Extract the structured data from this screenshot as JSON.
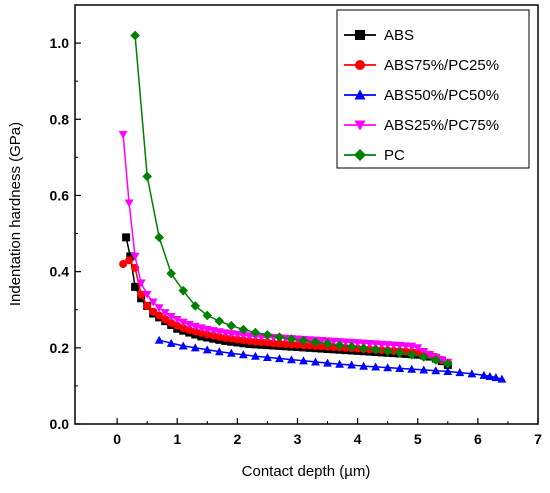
{
  "chart_data": {
    "type": "line",
    "title": "",
    "xlabel": "Contact depth (µm)",
    "ylabel": "Indentation hardness (GPa)",
    "xlim": [
      -0.7,
      7
    ],
    "ylim": [
      0,
      1.1
    ],
    "xticks": [
      "0",
      "1",
      "2",
      "3",
      "4",
      "5",
      "6",
      "7"
    ],
    "yticks": [
      "0.0",
      "0.2",
      "0.4",
      "0.6",
      "0.8",
      "1.0"
    ],
    "grid": false,
    "legend_position": "top-right",
    "series": [
      {
        "name": "ABS",
        "color": "#000000",
        "marker": "square",
        "x": [
          0.15,
          0.22,
          0.3,
          0.4,
          0.5,
          0.6,
          0.7,
          0.8,
          0.9,
          1.0,
          1.1,
          1.2,
          1.3,
          1.4,
          1.5,
          1.6,
          1.7,
          1.8,
          1.9,
          2.0,
          2.1,
          2.2,
          2.3,
          2.4,
          2.5,
          2.6,
          2.7,
          2.8,
          2.9,
          3.0,
          3.1,
          3.2,
          3.3,
          3.4,
          3.5,
          3.6,
          3.7,
          3.8,
          3.9,
          4.0,
          4.1,
          4.2,
          4.3,
          4.4,
          4.5,
          4.6,
          4.7,
          4.8,
          4.9,
          5.0,
          5.1,
          5.2,
          5.3,
          5.4,
          5.5
        ],
        "y": [
          0.49,
          0.44,
          0.36,
          0.33,
          0.31,
          0.29,
          0.28,
          0.27,
          0.26,
          0.25,
          0.245,
          0.24,
          0.235,
          0.23,
          0.227,
          0.224,
          0.221,
          0.218,
          0.216,
          0.214,
          0.212,
          0.21,
          0.209,
          0.208,
          0.207,
          0.206,
          0.205,
          0.204,
          0.203,
          0.202,
          0.201,
          0.2,
          0.199,
          0.198,
          0.197,
          0.196,
          0.195,
          0.194,
          0.193,
          0.192,
          0.191,
          0.19,
          0.189,
          0.188,
          0.187,
          0.186,
          0.185,
          0.184,
          0.183,
          0.182,
          0.18,
          0.177,
          0.172,
          0.165,
          0.155
        ]
      },
      {
        "name": "ABS75%/PC25%",
        "color": "#ff0000",
        "marker": "circle",
        "x": [
          0.1,
          0.2,
          0.3,
          0.4,
          0.5,
          0.6,
          0.7,
          0.8,
          0.9,
          1.0,
          1.1,
          1.2,
          1.3,
          1.4,
          1.5,
          1.6,
          1.7,
          1.8,
          1.9,
          2.0,
          2.1,
          2.2,
          2.3,
          2.4,
          2.5,
          2.6,
          2.7,
          2.8,
          2.9,
          3.0,
          3.1,
          3.2,
          3.3,
          3.4,
          3.5,
          3.6,
          3.7,
          3.8,
          3.9,
          4.0,
          4.1,
          4.2,
          4.3,
          4.4,
          4.5,
          4.6,
          4.7,
          4.8,
          4.9,
          5.0,
          5.1,
          5.2,
          5.3,
          5.4,
          5.5
        ],
        "y": [
          0.42,
          0.43,
          0.41,
          0.34,
          0.31,
          0.295,
          0.285,
          0.275,
          0.265,
          0.258,
          0.252,
          0.247,
          0.243,
          0.239,
          0.235,
          0.232,
          0.229,
          0.226,
          0.224,
          0.222,
          0.22,
          0.218,
          0.216,
          0.215,
          0.214,
          0.212,
          0.211,
          0.21,
          0.209,
          0.208,
          0.207,
          0.206,
          0.205,
          0.204,
          0.203,
          0.202,
          0.201,
          0.2,
          0.199,
          0.198,
          0.197,
          0.196,
          0.195,
          0.194,
          0.193,
          0.192,
          0.191,
          0.19,
          0.189,
          0.188,
          0.186,
          0.182,
          0.176,
          0.168,
          0.16
        ]
      },
      {
        "name": "ABS50%/PC50%",
        "color": "#0000ff",
        "marker": "triangle-up",
        "x": [
          0.7,
          0.9,
          1.1,
          1.3,
          1.5,
          1.7,
          1.9,
          2.1,
          2.3,
          2.5,
          2.7,
          2.9,
          3.1,
          3.3,
          3.5,
          3.7,
          3.9,
          4.1,
          4.3,
          4.5,
          4.7,
          4.9,
          5.1,
          5.3,
          5.5,
          5.7,
          5.9,
          6.1,
          6.2,
          6.3,
          6.4
        ],
        "y": [
          0.22,
          0.212,
          0.205,
          0.2,
          0.195,
          0.19,
          0.186,
          0.182,
          0.178,
          0.175,
          0.172,
          0.169,
          0.166,
          0.163,
          0.16,
          0.157,
          0.155,
          0.152,
          0.15,
          0.148,
          0.146,
          0.144,
          0.142,
          0.14,
          0.138,
          0.135,
          0.132,
          0.128,
          0.125,
          0.122,
          0.118
        ]
      },
      {
        "name": "ABS25%/PC75%",
        "color": "#ff00ff",
        "marker": "triangle-down",
        "x": [
          0.1,
          0.2,
          0.3,
          0.4,
          0.5,
          0.6,
          0.7,
          0.8,
          0.9,
          1.0,
          1.1,
          1.2,
          1.3,
          1.4,
          1.5,
          1.6,
          1.7,
          1.8,
          1.9,
          2.0,
          2.1,
          2.2,
          2.3,
          2.4,
          2.5,
          2.6,
          2.7,
          2.8,
          2.9,
          3.0,
          3.1,
          3.2,
          3.3,
          3.4,
          3.5,
          3.6,
          3.7,
          3.8,
          3.9,
          4.0,
          4.1,
          4.2,
          4.3,
          4.4,
          4.5,
          4.6,
          4.7,
          4.8,
          4.9,
          5.0,
          5.1,
          5.2,
          5.3,
          5.4,
          5.5
        ],
        "y": [
          0.76,
          0.58,
          0.44,
          0.37,
          0.34,
          0.32,
          0.305,
          0.292,
          0.282,
          0.274,
          0.267,
          0.261,
          0.256,
          0.252,
          0.248,
          0.245,
          0.242,
          0.239,
          0.237,
          0.235,
          0.233,
          0.231,
          0.23,
          0.229,
          0.228,
          0.227,
          0.226,
          0.225,
          0.224,
          0.223,
          0.222,
          0.221,
          0.22,
          0.219,
          0.218,
          0.217,
          0.216,
          0.215,
          0.214,
          0.213,
          0.212,
          0.211,
          0.21,
          0.209,
          0.208,
          0.207,
          0.206,
          0.205,
          0.204,
          0.2,
          0.19,
          0.182,
          0.175,
          0.168,
          0.162
        ]
      },
      {
        "name": "PC",
        "color": "#008000",
        "marker": "diamond",
        "x": [
          0.3,
          0.5,
          0.7,
          0.9,
          1.1,
          1.3,
          1.5,
          1.7,
          1.9,
          2.1,
          2.3,
          2.5,
          2.7,
          2.9,
          3.1,
          3.3,
          3.5,
          3.7,
          3.9,
          4.1,
          4.3,
          4.5,
          4.7,
          4.9,
          5.1,
          5.3,
          5.5
        ],
        "y": [
          1.02,
          0.65,
          0.49,
          0.395,
          0.35,
          0.31,
          0.285,
          0.27,
          0.258,
          0.248,
          0.24,
          0.234,
          0.228,
          0.223,
          0.219,
          0.215,
          0.211,
          0.207,
          0.203,
          0.199,
          0.195,
          0.191,
          0.187,
          0.182,
          0.176,
          0.168,
          0.158
        ]
      }
    ]
  }
}
